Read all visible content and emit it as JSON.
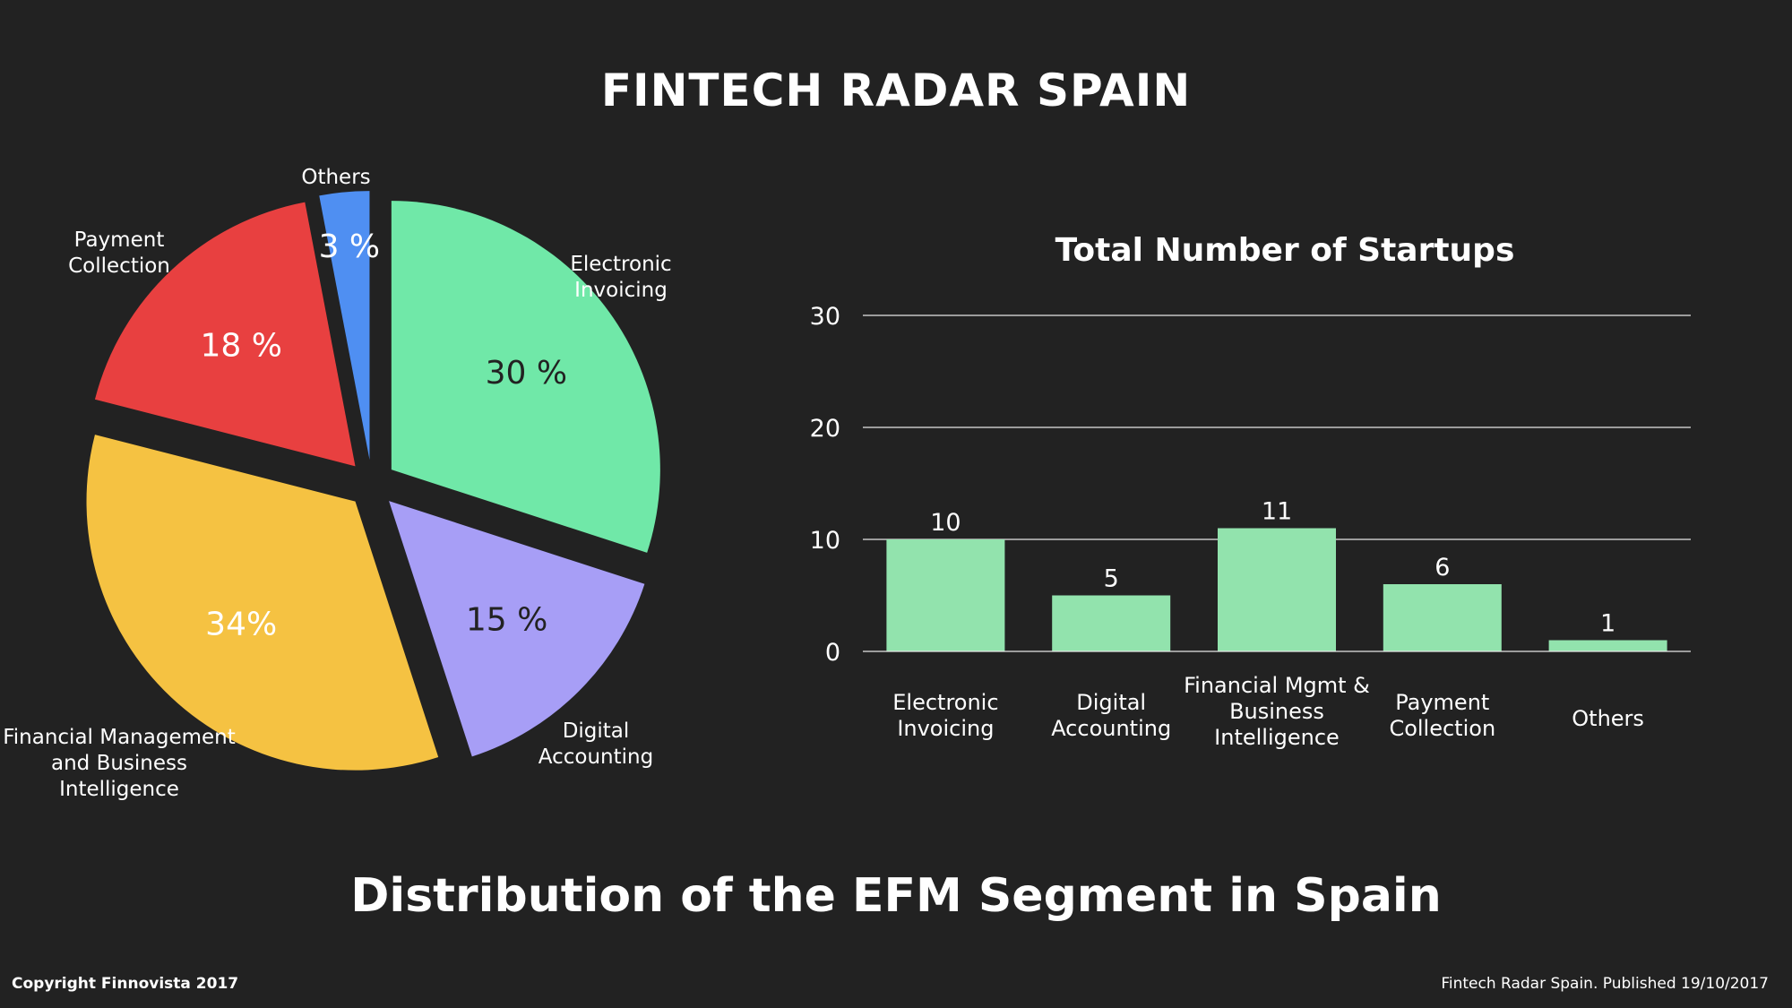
{
  "header": {
    "title": "FINTECH RADAR SPAIN"
  },
  "footer": {
    "subtitle": "Distribution of the EFM Segment in Spain",
    "copyright": "Copyright Finnovista 2017",
    "published": "Fintech Radar Spain. Published 19/10/2017"
  },
  "colors": {
    "background": "#222222",
    "bar": "#92e3ad",
    "electronic_invoicing": "#70e8a8",
    "digital_accounting": "#a79ef6",
    "financial_management": "#f5c242",
    "payment_collection": "#e84040",
    "others": "#4f8ff2"
  },
  "chart_data": [
    {
      "type": "pie",
      "slices": [
        {
          "name": "Electronic Invoicing",
          "label_lines": [
            "Electronic",
            "Invoicing"
          ],
          "value": 30,
          "value_label": "30 %",
          "color": "#70e8a8",
          "label_color": "#222222"
        },
        {
          "name": "Digital Accounting",
          "label_lines": [
            "Digital",
            "Accounting"
          ],
          "value": 15,
          "value_label": "15 %",
          "color": "#a79ef6",
          "label_color": "#222222"
        },
        {
          "name": "Financial Management and Business Intelligence",
          "label_lines": [
            "Financial Management",
            "and Business",
            "Intelligence"
          ],
          "value": 34,
          "value_label": "34%",
          "color": "#f5c242",
          "label_color": "#ffffff"
        },
        {
          "name": "Payment Collection",
          "label_lines": [
            "Payment",
            "Collection"
          ],
          "value": 18,
          "value_label": "18 %",
          "color": "#e84040",
          "label_color": "#ffffff"
        },
        {
          "name": "Others",
          "label_lines": [
            "Others"
          ],
          "value": 3,
          "value_label": "3 %",
          "color": "#4f8ff2",
          "label_color": "#ffffff"
        }
      ]
    },
    {
      "type": "bar",
      "title": "Total Number of Startups",
      "categories": [
        [
          "Electronic",
          "Invoicing"
        ],
        [
          "Digital",
          "Accounting"
        ],
        [
          "Financial Mgmt &",
          "Business",
          "Intelligence"
        ],
        [
          "Payment",
          "Collection"
        ],
        [
          "Others"
        ]
      ],
      "values": [
        10,
        5,
        11,
        6,
        1
      ],
      "ylim": [
        0,
        30
      ],
      "yticks": [
        0,
        10,
        20,
        30
      ],
      "grid": true,
      "color": "#92e3ad"
    }
  ]
}
